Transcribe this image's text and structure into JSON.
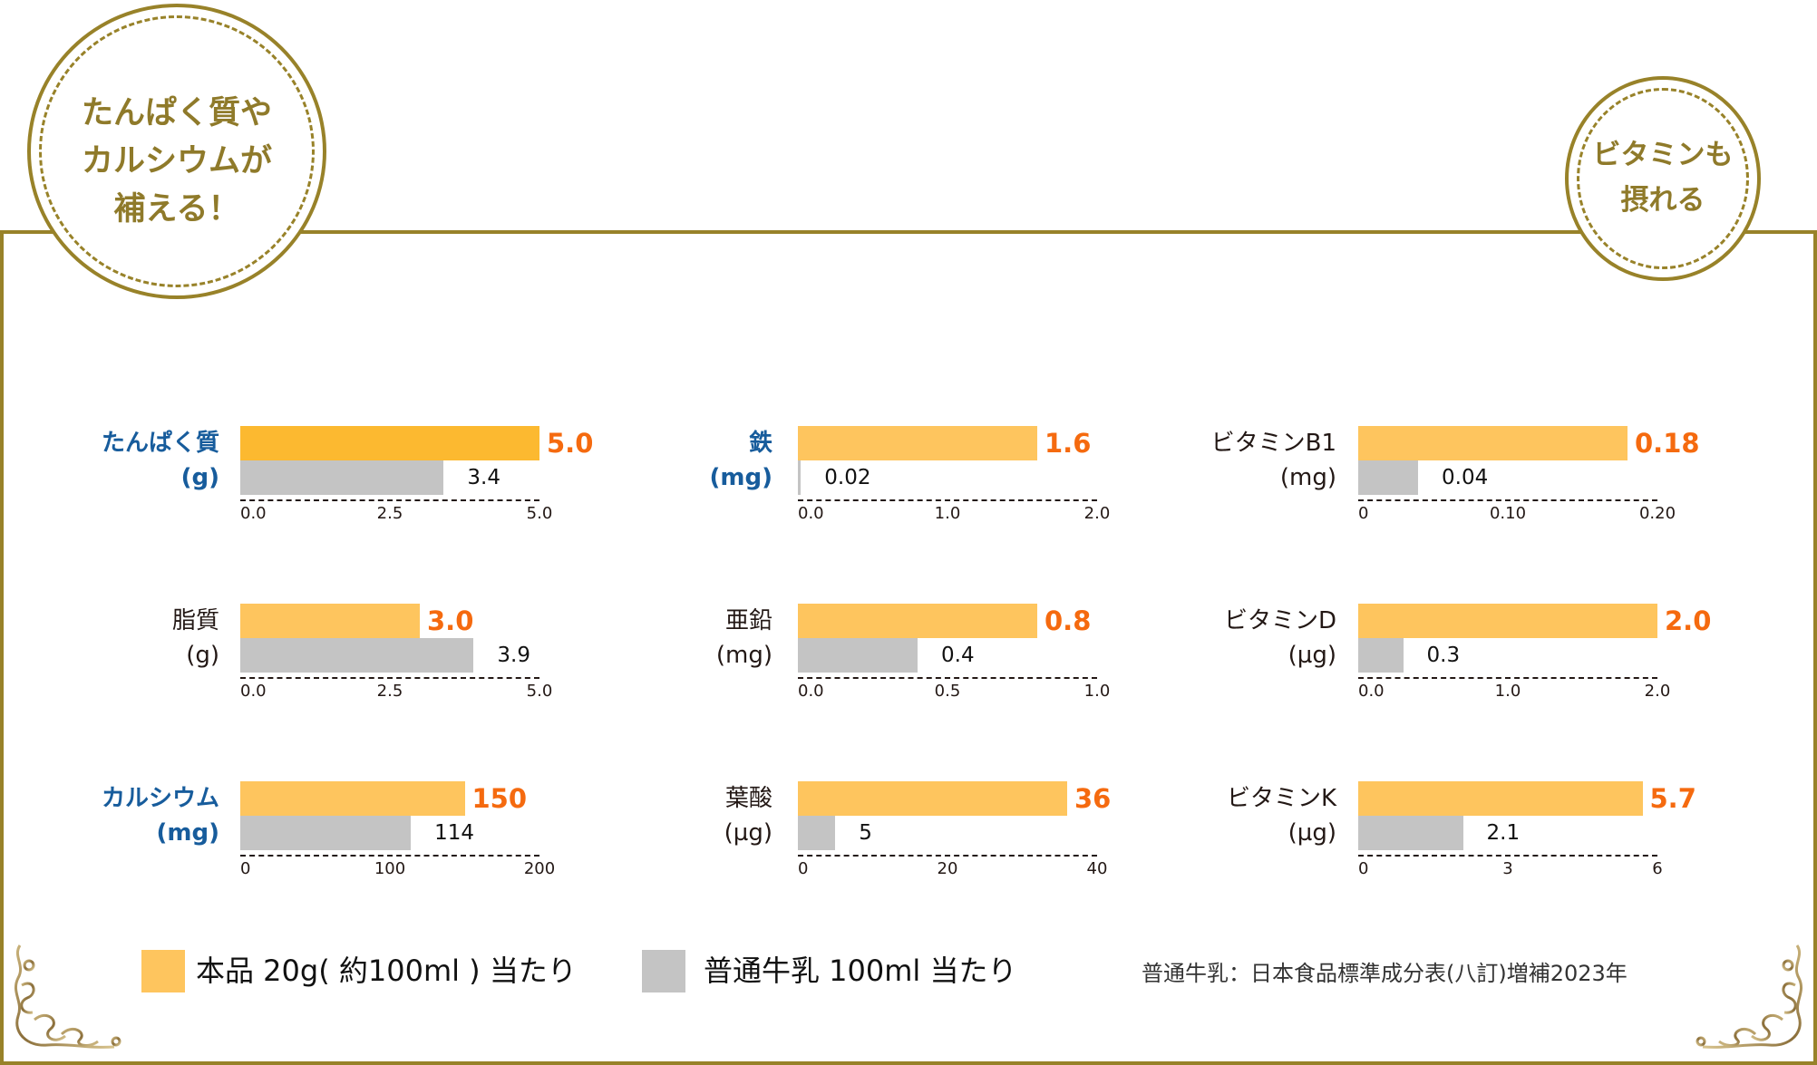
{
  "badges": {
    "left": [
      "たんぱく質や",
      "カルシウムが",
      "補える！"
    ],
    "right": [
      "ビタミンも",
      "摂れる"
    ]
  },
  "colors": {
    "frame": "#988229",
    "product": "#fec55e",
    "product_highlight": "#fcb930",
    "milk": "#c4c4c4",
    "value_label": "#f56a0f",
    "highlight_label": "#175c9c"
  },
  "legend": {
    "product": "本品 20g( 約100ml ) 当たり",
    "milk": "普通牛乳 100ml 当たり"
  },
  "source": "普通牛乳：日本食品標準成分表(八訂)増補2023年",
  "chart_data": [
    {
      "type": "bar",
      "orientation": "horizontal",
      "label": "たんぱく質",
      "unit": "(g)",
      "highlight": true,
      "series": [
        {
          "name": "本品 20g( 約100ml ) 当たり",
          "value": 5.0,
          "label": "5.0"
        },
        {
          "name": "普通牛乳 100ml 当たり",
          "value": 3.4,
          "label": "3.4"
        }
      ],
      "xlim": [
        0,
        5
      ],
      "ticks": [
        "0.0",
        "2.5",
        "5.0"
      ]
    },
    {
      "type": "bar",
      "orientation": "horizontal",
      "label": "脂質",
      "unit": "(g)",
      "highlight": false,
      "series": [
        {
          "name": "本品 20g( 約100ml ) 当たり",
          "value": 3.0,
          "label": "3.0"
        },
        {
          "name": "普通牛乳 100ml 当たり",
          "value": 3.9,
          "label": "3.9"
        }
      ],
      "xlim": [
        0,
        5
      ],
      "ticks": [
        "0.0",
        "2.5",
        "5.0"
      ]
    },
    {
      "type": "bar",
      "orientation": "horizontal",
      "label": "カルシウム",
      "unit": "(mg)",
      "highlight": true,
      "series": [
        {
          "name": "本品 20g( 約100ml ) 当たり",
          "value": 150,
          "label": "150"
        },
        {
          "name": "普通牛乳 100ml 当たり",
          "value": 114,
          "label": "114"
        }
      ],
      "xlim": [
        0,
        200
      ],
      "ticks": [
        "0",
        "100",
        "200"
      ]
    },
    {
      "type": "bar",
      "orientation": "horizontal",
      "label": "鉄",
      "unit": "(mg)",
      "highlight": true,
      "series": [
        {
          "name": "本品 20g( 約100ml ) 当たり",
          "value": 1.6,
          "label": "1.6"
        },
        {
          "name": "普通牛乳 100ml 当たり",
          "value": 0.02,
          "label": "0.02"
        }
      ],
      "xlim": [
        0,
        2
      ],
      "ticks": [
        "0.0",
        "1.0",
        "2.0"
      ]
    },
    {
      "type": "bar",
      "orientation": "horizontal",
      "label": "亜鉛",
      "unit": "(mg)",
      "highlight": false,
      "series": [
        {
          "name": "本品 20g( 約100ml ) 当たり",
          "value": 0.8,
          "label": "0.8"
        },
        {
          "name": "普通牛乳 100ml 当たり",
          "value": 0.4,
          "label": "0.4"
        }
      ],
      "xlim": [
        0,
        1
      ],
      "ticks": [
        "0.0",
        "0.5",
        "1.0"
      ]
    },
    {
      "type": "bar",
      "orientation": "horizontal",
      "label": "葉酸",
      "unit": "(µg)",
      "highlight": false,
      "series": [
        {
          "name": "本品 20g( 約100ml ) 当たり",
          "value": 36,
          "label": "36"
        },
        {
          "name": "普通牛乳 100ml 当たり",
          "value": 5,
          "label": "5"
        }
      ],
      "xlim": [
        0,
        40
      ],
      "ticks": [
        "0",
        "20",
        "40"
      ]
    },
    {
      "type": "bar",
      "orientation": "horizontal",
      "label": "ビタミンB1",
      "unit": "(mg)",
      "highlight": false,
      "series": [
        {
          "name": "本品 20g( 約100ml ) 当たり",
          "value": 0.18,
          "label": "0.18"
        },
        {
          "name": "普通牛乳 100ml 当たり",
          "value": 0.04,
          "label": "0.04"
        }
      ],
      "xlim": [
        0,
        0.2
      ],
      "ticks": [
        "0",
        "0.10",
        "0.20"
      ]
    },
    {
      "type": "bar",
      "orientation": "horizontal",
      "label": "ビタミンD",
      "unit": "(µg)",
      "highlight": false,
      "series": [
        {
          "name": "本品 20g( 約100ml ) 当たり",
          "value": 2.0,
          "label": "2.0"
        },
        {
          "name": "普通牛乳 100ml 当たり",
          "value": 0.3,
          "label": "0.3"
        }
      ],
      "xlim": [
        0,
        2
      ],
      "ticks": [
        "0.0",
        "1.0",
        "2.0"
      ]
    },
    {
      "type": "bar",
      "orientation": "horizontal",
      "label": "ビタミンK",
      "unit": "(µg)",
      "highlight": false,
      "series": [
        {
          "name": "本品 20g( 約100ml ) 当たり",
          "value": 5.7,
          "label": "5.7"
        },
        {
          "name": "普通牛乳 100ml 当たり",
          "value": 2.1,
          "label": "2.1"
        }
      ],
      "xlim": [
        0,
        6
      ],
      "ticks": [
        "0",
        "3",
        "6"
      ]
    }
  ]
}
